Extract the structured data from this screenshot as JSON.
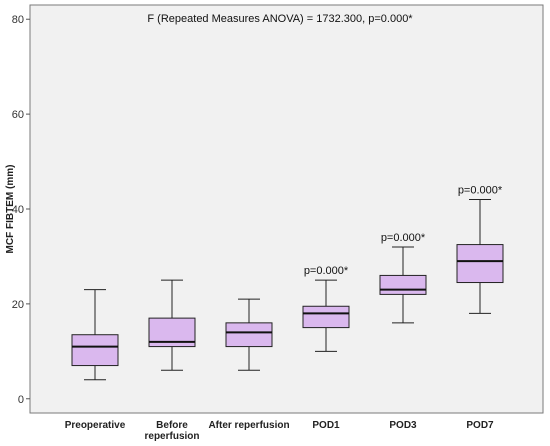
{
  "chart_data": {
    "type": "boxplot",
    "title": "F (Repeated Measures ANOVA) = 1732.300, p=0.000*",
    "ylabel": "MCF FIBTEM (mm)",
    "xlabel": "",
    "ylim": [
      -3,
      83
    ],
    "yticks": [
      0,
      20,
      40,
      60,
      80
    ],
    "categories": [
      [
        "Preoperative"
      ],
      [
        "Before",
        "reperfusion"
      ],
      [
        "After reperfusion"
      ],
      [
        "POD1"
      ],
      [
        "POD3"
      ],
      [
        "POD7"
      ]
    ],
    "boxes": [
      {
        "min": 4,
        "q1": 7,
        "median": 11,
        "q3": 13.5,
        "max": 23,
        "label": ""
      },
      {
        "min": 6,
        "q1": 11,
        "median": 12,
        "q3": 17,
        "max": 25,
        "label": ""
      },
      {
        "min": 6,
        "q1": 11,
        "median": 14,
        "q3": 16,
        "max": 21,
        "label": ""
      },
      {
        "min": 10,
        "q1": 15,
        "median": 18,
        "q3": 19.5,
        "max": 25,
        "label": "p=0.000*"
      },
      {
        "min": 16,
        "q1": 22,
        "median": 23,
        "q3": 26,
        "max": 32,
        "label": "p=0.000*"
      },
      {
        "min": 18,
        "q1": 24.5,
        "median": 29,
        "q3": 32.5,
        "max": 42,
        "label": "p=0.000*"
      }
    ],
    "box_color": "#dab8ee",
    "background_color": "#f1f1f1",
    "grid": false
  }
}
